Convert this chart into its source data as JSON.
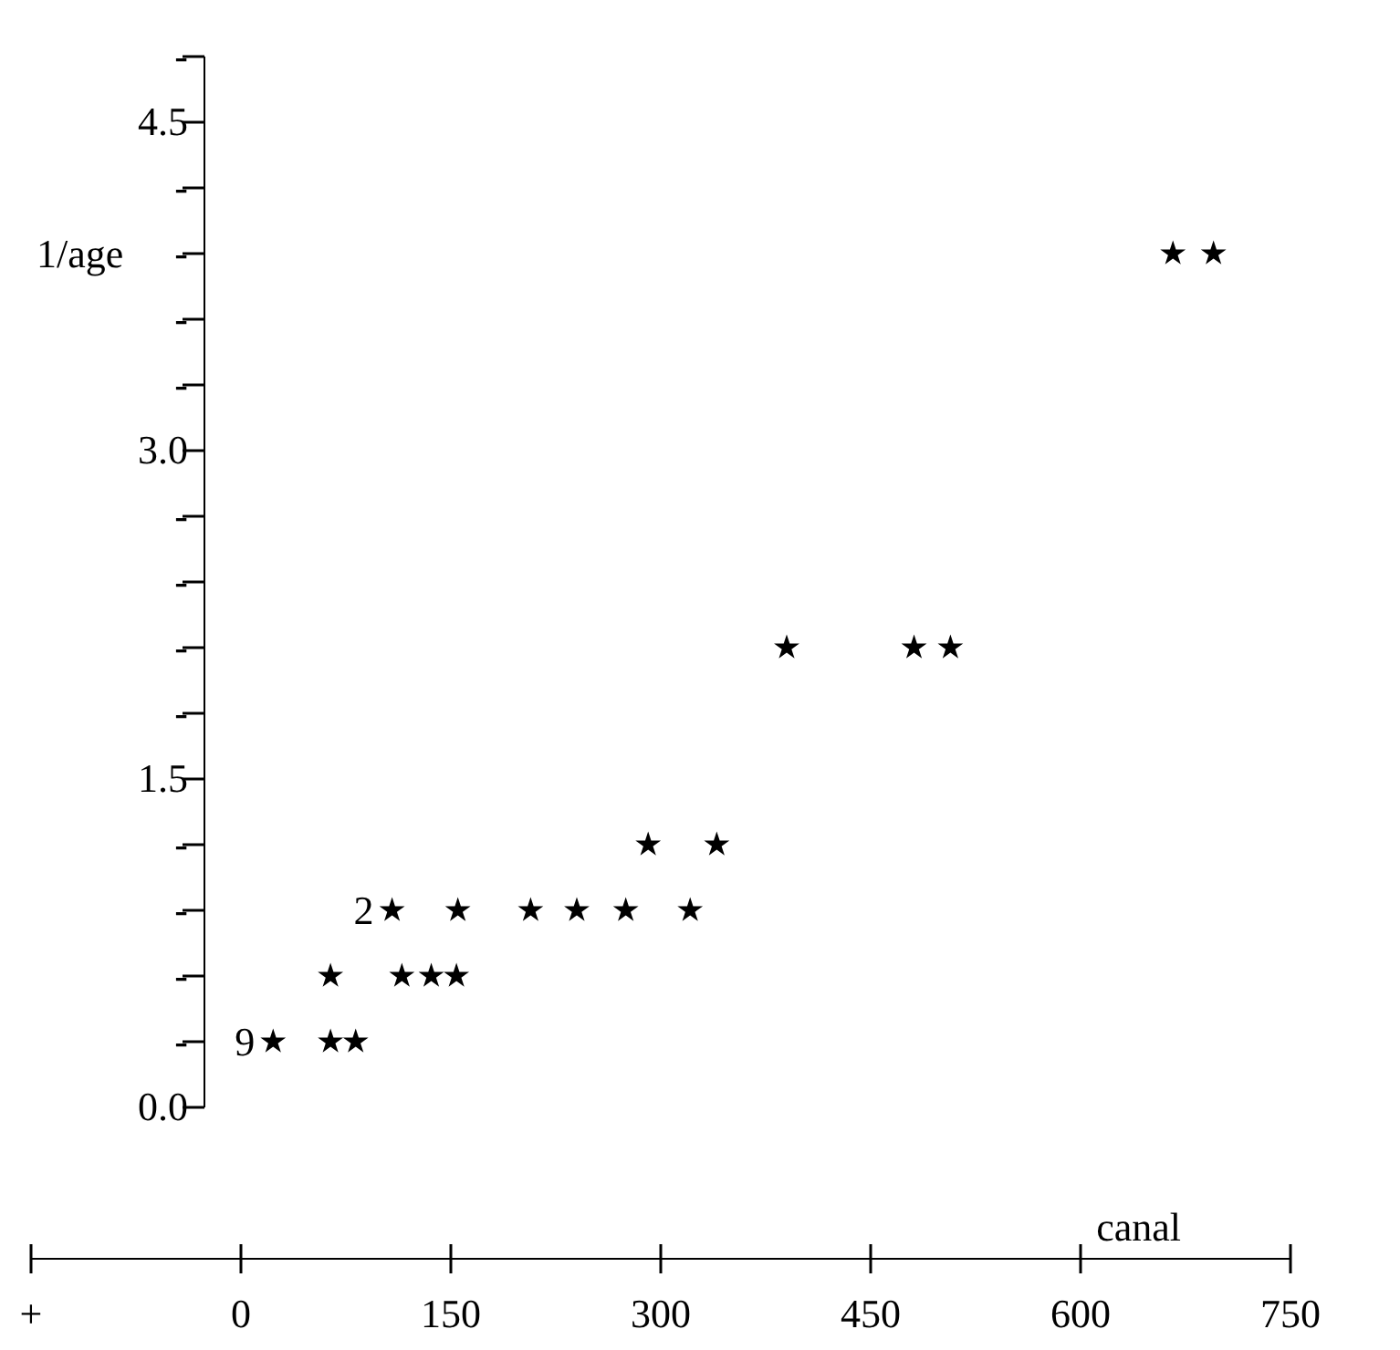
{
  "chart_data": {
    "type": "scatter",
    "xlabel": "canal",
    "ylabel": "1/age",
    "marker": "star",
    "x": [
      23,
      64,
      82,
      64,
      115,
      136,
      154,
      108,
      155,
      207,
      240,
      275,
      321,
      291,
      340,
      390,
      481,
      507,
      666,
      695
    ],
    "values": [
      0.3,
      0.3,
      0.3,
      0.6,
      0.6,
      0.6,
      0.6,
      0.9,
      0.9,
      0.9,
      0.9,
      0.9,
      0.9,
      1.2,
      1.2,
      2.1,
      2.1,
      2.1,
      3.9,
      3.9
    ],
    "annotations": [
      {
        "text": "9",
        "x": 23,
        "y": 0.3
      },
      {
        "text": "2",
        "x": 108,
        "y": 0.9
      }
    ],
    "color": "#000000",
    "xlim": [
      -150,
      750
    ],
    "xticks": [
      {
        "value": -150,
        "label": "+"
      },
      0,
      150,
      300,
      450,
      600,
      750
    ],
    "ylim": [
      0,
      4.8
    ],
    "yticks": [
      {
        "value": 0,
        "label": "0.0"
      },
      {
        "value": 0.3,
        "label": "-"
      },
      {
        "value": 0.6,
        "label": "-"
      },
      {
        "value": 0.9,
        "label": "-"
      },
      {
        "value": 1.2,
        "label": "-"
      },
      1.5,
      {
        "value": 1.8,
        "label": "-"
      },
      {
        "value": 2.1,
        "label": "-"
      },
      {
        "value": 2.4,
        "label": "-"
      },
      {
        "value": 2.7,
        "label": "-"
      },
      {
        "value": 3,
        "label": "3.0"
      },
      {
        "value": 3.3,
        "label": "-"
      },
      {
        "value": 3.6,
        "label": "-"
      },
      {
        "value": 3.9,
        "label": "-"
      },
      {
        "value": 4.2,
        "label": "-"
      },
      4.5,
      {
        "value": 4.8,
        "label": "-"
      }
    ],
    "grid": false
  }
}
